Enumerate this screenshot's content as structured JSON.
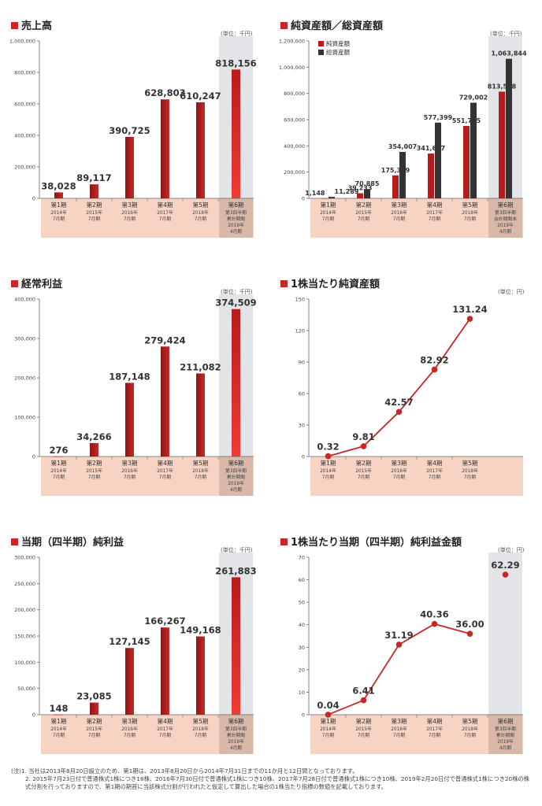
{
  "chart_data": [
    {
      "id": "sales",
      "type": "bar",
      "title": "売上高",
      "unit": "(単位：千円)",
      "ylim": [
        0,
        1000000
      ],
      "yticks": [
        "0",
        "200,000",
        "400,000",
        "600,000",
        "800,000",
        "1,000,000"
      ],
      "categories": [
        {
          "label": "第1期",
          "sub": [
            "2014年",
            "7月期"
          ]
        },
        {
          "label": "第2期",
          "sub": [
            "2015年",
            "7月期"
          ]
        },
        {
          "label": "第3期",
          "sub": [
            "2016年",
            "7月期"
          ]
        },
        {
          "label": "第4期",
          "sub": [
            "2017年",
            "7月期"
          ]
        },
        {
          "label": "第5期",
          "sub": [
            "2018年",
            "7月期"
          ]
        },
        {
          "label": "第6期",
          "sub": [
            "第3四半期",
            "累計期間",
            "2019年",
            "4月期"
          ]
        }
      ],
      "highlight_last": true,
      "series": [
        {
          "values": [
            38028,
            89117,
            390725,
            628803,
            610247,
            818156
          ],
          "labels": [
            "38,028",
            "89,117",
            "390,725",
            "628,803",
            "610,247",
            "818,156"
          ]
        }
      ]
    },
    {
      "id": "net_assets",
      "type": "bar",
      "title": "純資産額／総資産額",
      "unit": "(単位：千円)",
      "ylim": [
        0,
        1200000
      ],
      "yticks": [
        "0",
        "200,000",
        "400,000",
        "600,000",
        "800,000",
        "1,000,000",
        "1,200,000"
      ],
      "categories": [
        {
          "label": "第1期",
          "sub": [
            "2014年",
            "7月期"
          ]
        },
        {
          "label": "第2期",
          "sub": [
            "2015年",
            "7月期"
          ]
        },
        {
          "label": "第3期",
          "sub": [
            "2016年",
            "7月期"
          ]
        },
        {
          "label": "第4期",
          "sub": [
            "2017年",
            "7月期"
          ]
        },
        {
          "label": "第5期",
          "sub": [
            "2018年",
            "7月期"
          ]
        },
        {
          "label": "第6期",
          "sub": [
            "第3四半期",
            "会計期間末",
            "2019年",
            "4月期"
          ]
        }
      ],
      "highlight_last": true,
      "legend": [
        "純資産額",
        "総資産額"
      ],
      "series": [
        {
          "name": "純資産額",
          "values": [
            1148,
            39233,
            175379,
            341647,
            551715,
            813598
          ],
          "labels": [
            "1,148",
            "39,233",
            "175,379",
            "341,647",
            "551,715",
            "813,598"
          ]
        },
        {
          "name": "総資産額",
          "values": [
            11289,
            70885,
            354007,
            577399,
            729002,
            1063844
          ],
          "labels": [
            "11,289",
            "70,885",
            "354,007",
            "577,399",
            "729,002",
            "1,063,844"
          ]
        }
      ]
    },
    {
      "id": "ordinary_profit",
      "type": "bar",
      "title": "経常利益",
      "unit": "(単位：千円)",
      "ylim": [
        0,
        400000
      ],
      "yticks": [
        "0",
        "100,000",
        "200,000",
        "300,000",
        "400,000"
      ],
      "categories": [
        {
          "label": "第1期",
          "sub": [
            "2014年",
            "7月期"
          ]
        },
        {
          "label": "第2期",
          "sub": [
            "2015年",
            "7月期"
          ]
        },
        {
          "label": "第3期",
          "sub": [
            "2016年",
            "7月期"
          ]
        },
        {
          "label": "第4期",
          "sub": [
            "2017年",
            "7月期"
          ]
        },
        {
          "label": "第5期",
          "sub": [
            "2018年",
            "7月期"
          ]
        },
        {
          "label": "第6期",
          "sub": [
            "第3四半期",
            "累計期間",
            "2019年",
            "4月期"
          ]
        }
      ],
      "highlight_last": true,
      "series": [
        {
          "values": [
            276,
            34266,
            187148,
            279424,
            211082,
            374509
          ],
          "labels": [
            "276",
            "34,266",
            "187,148",
            "279,424",
            "211,082",
            "374,509"
          ]
        }
      ]
    },
    {
      "id": "bps",
      "type": "line",
      "title": "1株当たり純資産額",
      "unit": "(単位：円)",
      "ylim": [
        0,
        150
      ],
      "yticks": [
        "0",
        "30",
        "60",
        "90",
        "120",
        "150"
      ],
      "categories": [
        {
          "label": "第1期",
          "sub": [
            "2014年",
            "7月期"
          ]
        },
        {
          "label": "第2期",
          "sub": [
            "2015年",
            "7月期"
          ]
        },
        {
          "label": "第3期",
          "sub": [
            "2016年",
            "7月期"
          ]
        },
        {
          "label": "第4期",
          "sub": [
            "2017年",
            "7月期"
          ]
        },
        {
          "label": "第5期",
          "sub": [
            "2018年",
            "7月期"
          ]
        }
      ],
      "slots": 6,
      "highlight_last": false,
      "series": [
        {
          "values": [
            0.32,
            9.81,
            42.57,
            82.92,
            131.24
          ],
          "labels": [
            "0.32",
            "9.81",
            "42.57",
            "82.92",
            "131.24"
          ]
        }
      ]
    },
    {
      "id": "net_income",
      "type": "bar",
      "title": "当期（四半期）純利益",
      "unit": "(単位：千円)",
      "ylim": [
        0,
        300000
      ],
      "yticks": [
        "0",
        "50,000",
        "100,000",
        "150,000",
        "200,000",
        "250,000",
        "300,000"
      ],
      "categories": [
        {
          "label": "第1期",
          "sub": [
            "2014年",
            "7月期"
          ]
        },
        {
          "label": "第2期",
          "sub": [
            "2015年",
            "7月期"
          ]
        },
        {
          "label": "第3期",
          "sub": [
            "2016年",
            "7月期"
          ]
        },
        {
          "label": "第4期",
          "sub": [
            "2017年",
            "7月期"
          ]
        },
        {
          "label": "第5期",
          "sub": [
            "2018年",
            "7月期"
          ]
        },
        {
          "label": "第6期",
          "sub": [
            "第3四半期",
            "累計期間",
            "2019年",
            "4月期"
          ]
        }
      ],
      "highlight_last": true,
      "series": [
        {
          "values": [
            148,
            23085,
            127145,
            166267,
            149168,
            261883
          ],
          "labels": [
            "148",
            "23,085",
            "127,145",
            "166,267",
            "149,168",
            "261,883"
          ]
        }
      ]
    },
    {
      "id": "eps",
      "type": "line",
      "title": "1株当たり当期（四半期）純利益金額",
      "unit": "(単位：円)",
      "ylim": [
        0,
        70
      ],
      "yticks": [
        "0",
        "10",
        "20",
        "30",
        "40",
        "50",
        "60",
        "70"
      ],
      "categories": [
        {
          "label": "第1期",
          "sub": [
            "2014年",
            "7月期"
          ]
        },
        {
          "label": "第2期",
          "sub": [
            "2015年",
            "7月期"
          ]
        },
        {
          "label": "第3期",
          "sub": [
            "2016年",
            "7月期"
          ]
        },
        {
          "label": "第4期",
          "sub": [
            "2017年",
            "7月期"
          ]
        },
        {
          "label": "第5期",
          "sub": [
            "2018年",
            "7月期"
          ]
        },
        {
          "label": "第6期",
          "sub": [
            "第3四半期",
            "累計期間",
            "2019年",
            "4月期"
          ]
        }
      ],
      "highlight_last": true,
      "line_points": 5,
      "series": [
        {
          "values": [
            0.04,
            6.41,
            31.19,
            40.36,
            36.0,
            62.29
          ],
          "labels": [
            "0.04",
            "6.41",
            "31.19",
            "40.36",
            "36.00",
            "62.29"
          ]
        }
      ]
    }
  ],
  "notes": [
    "(注)1. 当社は2013年8月20日設立のため、第1期は、2013年8月20日から2014年7月31日までの11か月と12日間となっております。",
    "2. 2015年7月23日付で普通株式1株につき18株、2016年7月30日付で普通株式1株につき10株、2017年7月28日付で普通株式1株につき10株、2019年2月20日付で普通株式1株につき20株の株式分割を行っておりますので、第1期の期首に当該株式分割が行われたと仮定して算出した場合の1株当たり指標の数値を記載しております。"
  ],
  "colors": {
    "bar": "#b71c1c",
    "bar_light": "#e53935",
    "dark_bar": "#333333",
    "line": "#c62828",
    "highlight": "#e3e4e7",
    "cat_band": "#f4cbb8"
  }
}
